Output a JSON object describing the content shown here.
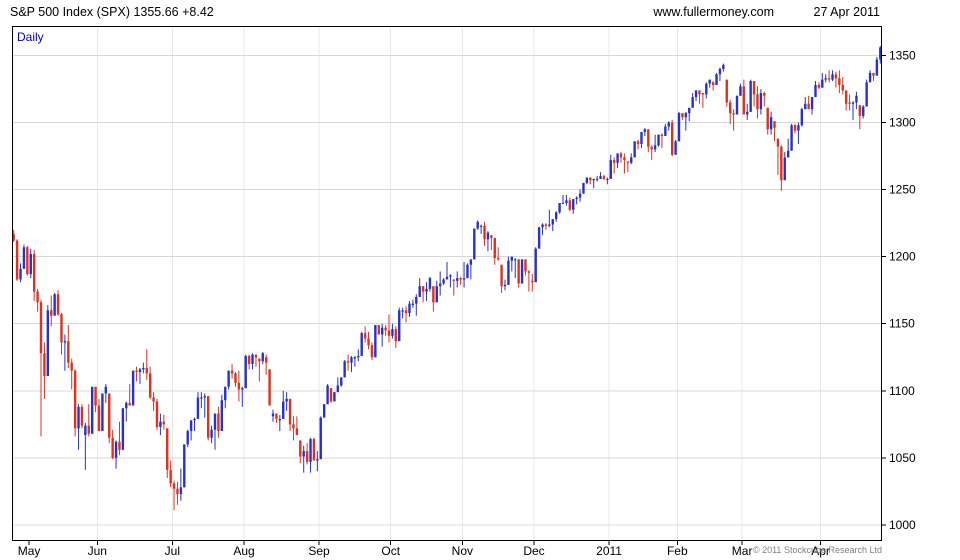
{
  "header": {
    "title": "S&P 500 Index (SPX) 1355.66 +8.42",
    "website": "www.fullermoney.com",
    "date": "27 Apr 2011"
  },
  "footer": {
    "copyright": "© 2011 Stockcube Research Ltd"
  },
  "chart_data": {
    "type": "candlestick",
    "title": "S&P 500 Index (SPX)",
    "period_label": "Daily",
    "last_price": 1355.66,
    "change": "+8.42",
    "ylim": [
      988,
      1372
    ],
    "y_ticks": [
      1000,
      1050,
      1100,
      1150,
      1200,
      1250,
      1300,
      1350
    ],
    "x_ticks": [
      {
        "label": "May",
        "index": 5
      },
      {
        "label": "Jun",
        "index": 25
      },
      {
        "label": "Jul",
        "index": 47
      },
      {
        "label": "Aug",
        "index": 68
      },
      {
        "label": "Sep",
        "index": 90
      },
      {
        "label": "Oct",
        "index": 111
      },
      {
        "label": "Nov",
        "index": 132
      },
      {
        "label": "Dec",
        "index": 153
      },
      {
        "label": "2011",
        "index": 175
      },
      {
        "label": "Feb",
        "index": 195
      },
      {
        "label": "Mar",
        "index": 214
      },
      {
        "label": "Apr",
        "index": 237
      }
    ],
    "colors": {
      "up": "#2632cc",
      "down": "#e0301e",
      "grid": "#d8d8d8",
      "grid_vertical": "#e7e7e7",
      "axis": "#000000",
      "period_label": "#0000cc",
      "copyright": "#808080"
    },
    "ohlc": [
      [
        1217,
        1220,
        1211,
        1212
      ],
      [
        1212,
        1213,
        1182,
        1183
      ],
      [
        1183,
        1195,
        1181,
        1191
      ],
      [
        1191,
        1209,
        1191,
        1207
      ],
      [
        1207,
        1208,
        1186,
        1187
      ],
      [
        1187,
        1206,
        1184,
        1202
      ],
      [
        1202,
        1205,
        1167,
        1174
      ],
      [
        1174,
        1176,
        1159,
        1166
      ],
      [
        1166,
        1168,
        1066,
        1128
      ],
      [
        1128,
        1136,
        1094,
        1111
      ],
      [
        1111,
        1164,
        1111,
        1160
      ],
      [
        1160,
        1171,
        1148,
        1156
      ],
      [
        1156,
        1173,
        1156,
        1172
      ],
      [
        1172,
        1175,
        1156,
        1157
      ],
      [
        1157,
        1158,
        1127,
        1136
      ],
      [
        1136,
        1142,
        1115,
        1137
      ],
      [
        1137,
        1149,
        1117,
        1121
      ],
      [
        1121,
        1124,
        1101,
        1115
      ],
      [
        1115,
        1116,
        1066,
        1072
      ],
      [
        1072,
        1090,
        1056,
        1088
      ],
      [
        1088,
        1090,
        1072,
        1074
      ],
      [
        1067,
        1076,
        1041,
        1074
      ],
      [
        1074,
        1090,
        1066,
        1068
      ],
      [
        1068,
        1103,
        1068,
        1103
      ],
      [
        1103,
        1103,
        1084,
        1089
      ],
      [
        1089,
        1094,
        1070,
        1070
      ],
      [
        1070,
        1098,
        1070,
        1098
      ],
      [
        1098,
        1105,
        1091,
        1103
      ],
      [
        1098,
        1098,
        1061,
        1065
      ],
      [
        1065,
        1071,
        1049,
        1050
      ],
      [
        1050,
        1063,
        1042,
        1062
      ],
      [
        1062,
        1077,
        1052,
        1056
      ],
      [
        1056,
        1087,
        1056,
        1087
      ],
      [
        1087,
        1092,
        1077,
        1091
      ],
      [
        1091,
        1105,
        1089,
        1089
      ],
      [
        1089,
        1115,
        1089,
        1115
      ],
      [
        1115,
        1118,
        1107,
        1114
      ],
      [
        1114,
        1117,
        1105,
        1116
      ],
      [
        1116,
        1121,
        1113,
        1117
      ],
      [
        1117,
        1131,
        1108,
        1113
      ],
      [
        1113,
        1118,
        1094,
        1095
      ],
      [
        1095,
        1099,
        1085,
        1092
      ],
      [
        1092,
        1094,
        1071,
        1073
      ],
      [
        1073,
        1083,
        1067,
        1077
      ],
      [
        1077,
        1082,
        1071,
        1075
      ],
      [
        1072,
        1072,
        1035,
        1041
      ],
      [
        1041,
        1048,
        1028,
        1031
      ],
      [
        1031,
        1033,
        1011,
        1027
      ],
      [
        1027,
        1032,
        1015,
        1023
      ],
      [
        1023,
        1042,
        1018,
        1028
      ],
      [
        1028,
        1060,
        1028,
        1060
      ],
      [
        1060,
        1071,
        1058,
        1070
      ],
      [
        1070,
        1078,
        1063,
        1078
      ],
      [
        1078,
        1080,
        1070,
        1079
      ],
      [
        1079,
        1099,
        1079,
        1095
      ],
      [
        1095,
        1099,
        1087,
        1095
      ],
      [
        1095,
        1098,
        1080,
        1096
      ],
      [
        1096,
        1096,
        1063,
        1065
      ],
      [
        1065,
        1074,
        1061,
        1071
      ],
      [
        1071,
        1083,
        1056,
        1083
      ],
      [
        1083,
        1088,
        1065,
        1070
      ],
      [
        1070,
        1097,
        1070,
        1093
      ],
      [
        1093,
        1103,
        1087,
        1103
      ],
      [
        1103,
        1115,
        1101,
        1115
      ],
      [
        1115,
        1120,
        1109,
        1113
      ],
      [
        1113,
        1114,
        1103,
        1106
      ],
      [
        1106,
        1115,
        1092,
        1101
      ],
      [
        1101,
        1103,
        1088,
        1102
      ],
      [
        1102,
        1127,
        1102,
        1126
      ],
      [
        1126,
        1127,
        1116,
        1120
      ],
      [
        1120,
        1128,
        1116,
        1127
      ],
      [
        1127,
        1127,
        1118,
        1125
      ],
      [
        1124,
        1124,
        1107,
        1122
      ],
      [
        1122,
        1129,
        1120,
        1128
      ],
      [
        1125,
        1127,
        1112,
        1121
      ],
      [
        1116,
        1116,
        1089,
        1089
      ],
      [
        1081,
        1086,
        1077,
        1083
      ],
      [
        1083,
        1083,
        1076,
        1079
      ],
      [
        1078,
        1082,
        1070,
        1079
      ],
      [
        1079,
        1100,
        1079,
        1092
      ],
      [
        1092,
        1099,
        1085,
        1094
      ],
      [
        1094,
        1094,
        1070,
        1075
      ],
      [
        1075,
        1081,
        1063,
        1072
      ],
      [
        1072,
        1081,
        1067,
        1067
      ],
      [
        1063,
        1063,
        1046,
        1051
      ],
      [
        1051,
        1059,
        1039,
        1055
      ],
      [
        1055,
        1061,
        1045,
        1047
      ],
      [
        1047,
        1065,
        1039,
        1064
      ],
      [
        1064,
        1065,
        1048,
        1048
      ],
      [
        1048,
        1055,
        1040,
        1049
      ],
      [
        1049,
        1081,
        1049,
        1080
      ],
      [
        1080,
        1090,
        1080,
        1090
      ],
      [
        1090,
        1105,
        1090,
        1104
      ],
      [
        1102,
        1102,
        1091,
        1092
      ],
      [
        1092,
        1099,
        1092,
        1099
      ],
      [
        1099,
        1110,
        1099,
        1104
      ],
      [
        1104,
        1110,
        1103,
        1110
      ],
      [
        1110,
        1123,
        1110,
        1122
      ],
      [
        1122,
        1127,
        1115,
        1121
      ],
      [
        1121,
        1126,
        1114,
        1125
      ],
      [
        1124,
        1126,
        1118,
        1125
      ],
      [
        1125,
        1131,
        1122,
        1126
      ],
      [
        1126,
        1144,
        1126,
        1143
      ],
      [
        1143,
        1148,
        1136,
        1139
      ],
      [
        1139,
        1144,
        1131,
        1134
      ],
      [
        1134,
        1136,
        1123,
        1125
      ],
      [
        1125,
        1149,
        1125,
        1149
      ],
      [
        1149,
        1149,
        1142,
        1142
      ],
      [
        1142,
        1150,
        1133,
        1147
      ],
      [
        1147,
        1149,
        1141,
        1145
      ],
      [
        1145,
        1157,
        1136,
        1141
      ],
      [
        1141,
        1150,
        1139,
        1146
      ],
      [
        1146,
        1148,
        1132,
        1137
      ],
      [
        1137,
        1162,
        1137,
        1160
      ],
      [
        1159,
        1162,
        1154,
        1160
      ],
      [
        1160,
        1163,
        1151,
        1158
      ],
      [
        1158,
        1167,
        1155,
        1165
      ],
      [
        1164,
        1168,
        1162,
        1165
      ],
      [
        1165,
        1172,
        1156,
        1170
      ],
      [
        1170,
        1184,
        1170,
        1178
      ],
      [
        1178,
        1178,
        1166,
        1174
      ],
      [
        1174,
        1181,
        1167,
        1176
      ],
      [
        1176,
        1185,
        1174,
        1184
      ],
      [
        1178,
        1178,
        1159,
        1166
      ],
      [
        1166,
        1182,
        1166,
        1178
      ],
      [
        1178,
        1189,
        1171,
        1180
      ],
      [
        1180,
        1184,
        1179,
        1183
      ],
      [
        1183,
        1196,
        1183,
        1185
      ],
      [
        1185,
        1187,
        1177,
        1186
      ],
      [
        1183,
        1183,
        1171,
        1182
      ],
      [
        1182,
        1189,
        1177,
        1184
      ],
      [
        1184,
        1185,
        1179,
        1183
      ],
      [
        1183,
        1196,
        1177,
        1184
      ],
      [
        1184,
        1195,
        1184,
        1194
      ],
      [
        1194,
        1198,
        1183,
        1198
      ],
      [
        1198,
        1221,
        1198,
        1221
      ],
      [
        1221,
        1227,
        1220,
        1226
      ],
      [
        1223,
        1224,
        1217,
        1223
      ],
      [
        1223,
        1226,
        1208,
        1213
      ],
      [
        1213,
        1219,
        1204,
        1218
      ],
      [
        1216,
        1216,
        1205,
        1214
      ],
      [
        1214,
        1214,
        1194,
        1199
      ],
      [
        1199,
        1207,
        1197,
        1198
      ],
      [
        1194,
        1194,
        1173,
        1178
      ],
      [
        1178,
        1183,
        1175,
        1179
      ],
      [
        1179,
        1200,
        1179,
        1197
      ],
      [
        1197,
        1200,
        1189,
        1200
      ],
      [
        1198,
        1199,
        1184,
        1198
      ],
      [
        1198,
        1198,
        1177,
        1180
      ],
      [
        1180,
        1198,
        1180,
        1198
      ],
      [
        1198,
        1198,
        1186,
        1189
      ],
      [
        1189,
        1190,
        1174,
        1188
      ],
      [
        1182,
        1187,
        1174,
        1181
      ],
      [
        1181,
        1207,
        1181,
        1206
      ],
      [
        1206,
        1222,
        1206,
        1222
      ],
      [
        1222,
        1225,
        1216,
        1224
      ],
      [
        1224,
        1225,
        1220,
        1223
      ],
      [
        1223,
        1235,
        1222,
        1224
      ],
      [
        1224,
        1228,
        1219,
        1228
      ],
      [
        1228,
        1234,
        1226,
        1233
      ],
      [
        1233,
        1240,
        1232,
        1240
      ],
      [
        1240,
        1246,
        1240,
        1240
      ],
      [
        1240,
        1246,
        1238,
        1242
      ],
      [
        1242,
        1244,
        1234,
        1235
      ],
      [
        1235,
        1243,
        1232,
        1243
      ],
      [
        1243,
        1245,
        1239,
        1244
      ],
      [
        1244,
        1250,
        1241,
        1247
      ],
      [
        1247,
        1255,
        1247,
        1255
      ],
      [
        1255,
        1259,
        1254,
        1259
      ],
      [
        1259,
        1259,
        1254,
        1257
      ],
      [
        1257,
        1258,
        1251,
        1258
      ],
      [
        1258,
        1260,
        1256,
        1258
      ],
      [
        1258,
        1263,
        1258,
        1260
      ],
      [
        1260,
        1261,
        1257,
        1258
      ],
      [
        1258,
        1259,
        1254,
        1258
      ],
      [
        1258,
        1276,
        1258,
        1272
      ],
      [
        1272,
        1274,
        1262,
        1270
      ],
      [
        1270,
        1277,
        1266,
        1277
      ],
      [
        1277,
        1278,
        1270,
        1274
      ],
      [
        1274,
        1277,
        1262,
        1272
      ],
      [
        1271,
        1271,
        1263,
        1270
      ],
      [
        1270,
        1277,
        1269,
        1274
      ],
      [
        1274,
        1286,
        1274,
        1286
      ],
      [
        1286,
        1287,
        1280,
        1284
      ],
      [
        1284,
        1293,
        1281,
        1293
      ],
      [
        1293,
        1296,
        1290,
        1295
      ],
      [
        1295,
        1295,
        1278,
        1282
      ],
      [
        1282,
        1283,
        1272,
        1280
      ],
      [
        1280,
        1291,
        1278,
        1283
      ],
      [
        1283,
        1291,
        1282,
        1291
      ],
      [
        1291,
        1292,
        1281,
        1290
      ],
      [
        1290,
        1299,
        1290,
        1297
      ],
      [
        1297,
        1301,
        1294,
        1300
      ],
      [
        1300,
        1302,
        1275,
        1276
      ],
      [
        1276,
        1287,
        1276,
        1286
      ],
      [
        1286,
        1308,
        1286,
        1307
      ],
      [
        1307,
        1307,
        1302,
        1304
      ],
      [
        1304,
        1308,
        1294,
        1307
      ],
      [
        1307,
        1311,
        1301,
        1311
      ],
      [
        1311,
        1322,
        1311,
        1319
      ],
      [
        1319,
        1324,
        1316,
        1324
      ],
      [
        1324,
        1324,
        1314,
        1321
      ],
      [
        1322,
        1322,
        1311,
        1321
      ],
      [
        1321,
        1330,
        1318,
        1329
      ],
      [
        1329,
        1332,
        1326,
        1332
      ],
      [
        1330,
        1331,
        1324,
        1328
      ],
      [
        1328,
        1337,
        1328,
        1336
      ],
      [
        1336,
        1341,
        1331,
        1340
      ],
      [
        1340,
        1344,
        1338,
        1343
      ],
      [
        1332,
        1332,
        1312,
        1315
      ],
      [
        1315,
        1317,
        1299,
        1307
      ],
      [
        1307,
        1310,
        1294,
        1306
      ],
      [
        1306,
        1320,
        1306,
        1320
      ],
      [
        1320,
        1329,
        1320,
        1327
      ],
      [
        1327,
        1332,
        1306,
        1306
      ],
      [
        1306,
        1314,
        1302,
        1308
      ],
      [
        1308,
        1332,
        1308,
        1331
      ],
      [
        1331,
        1331,
        1312,
        1321
      ],
      [
        1321,
        1327,
        1303,
        1310
      ],
      [
        1310,
        1325,
        1306,
        1322
      ],
      [
        1322,
        1323,
        1312,
        1320
      ],
      [
        1311,
        1311,
        1291,
        1295
      ],
      [
        1295,
        1308,
        1291,
        1304
      ],
      [
        1301,
        1301,
        1286,
        1296
      ],
      [
        1288,
        1288,
        1261,
        1282
      ],
      [
        1282,
        1283,
        1249,
        1257
      ],
      [
        1257,
        1278,
        1257,
        1274
      ],
      [
        1274,
        1288,
        1274,
        1279
      ],
      [
        1279,
        1299,
        1279,
        1298
      ],
      [
        1298,
        1299,
        1292,
        1294
      ],
      [
        1294,
        1300,
        1284,
        1298
      ],
      [
        1298,
        1311,
        1297,
        1310
      ],
      [
        1310,
        1319,
        1310,
        1314
      ],
      [
        1314,
        1320,
        1310,
        1310
      ],
      [
        1310,
        1319,
        1306,
        1319
      ],
      [
        1319,
        1331,
        1319,
        1328
      ],
      [
        1328,
        1330,
        1325,
        1326
      ],
      [
        1326,
        1337,
        1326,
        1332
      ],
      [
        1332,
        1336,
        1330,
        1333
      ],
      [
        1333,
        1339,
        1330,
        1332
      ],
      [
        1332,
        1339,
        1331,
        1336
      ],
      [
        1336,
        1338,
        1326,
        1333
      ],
      [
        1333,
        1339,
        1322,
        1328
      ],
      [
        1328,
        1334,
        1321,
        1324
      ],
      [
        1324,
        1324,
        1309,
        1314
      ],
      [
        1315,
        1321,
        1309,
        1314
      ],
      [
        1314,
        1316,
        1302,
        1315
      ],
      [
        1315,
        1323,
        1310,
        1320
      ],
      [
        1313,
        1313,
        1295,
        1305
      ],
      [
        1305,
        1313,
        1303,
        1312
      ],
      [
        1312,
        1332,
        1312,
        1330
      ],
      [
        1330,
        1339,
        1330,
        1337
      ],
      [
        1337,
        1337,
        1331,
        1335
      ],
      [
        1335,
        1349,
        1335,
        1347
      ],
      [
        1347,
        1357,
        1344,
        1356
      ]
    ]
  }
}
